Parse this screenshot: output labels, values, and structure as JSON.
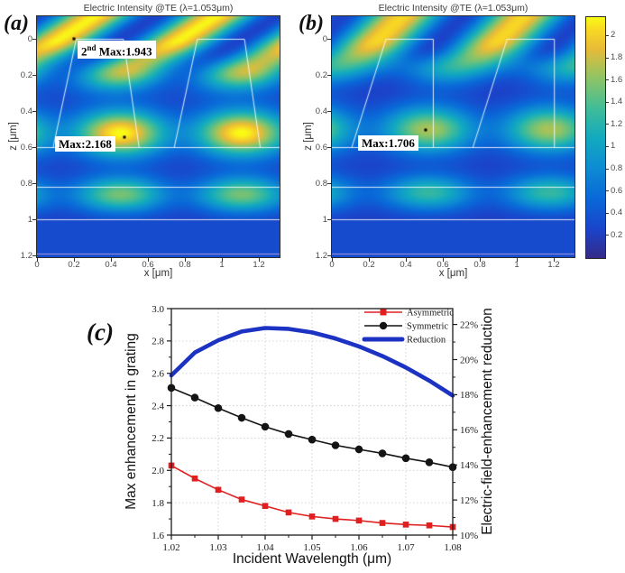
{
  "colors": {
    "parula": [
      [
        0,
        53,
        42,
        135
      ],
      [
        0.12,
        26,
        68,
        203
      ],
      [
        0.25,
        9,
        105,
        216
      ],
      [
        0.38,
        14,
        141,
        210
      ],
      [
        0.5,
        18,
        170,
        191
      ],
      [
        0.62,
        64,
        188,
        152
      ],
      [
        0.75,
        144,
        196,
        100
      ],
      [
        0.87,
        233,
        187,
        55
      ],
      [
        0.95,
        248,
        217,
        35
      ],
      [
        1,
        249,
        251,
        20
      ]
    ],
    "series_red": "#e02020",
    "series_black": "#141414",
    "series_blue": "#1c32c3",
    "grid": "#c9c9c9",
    "axis": "#1a1a1a",
    "outline_white": "rgba(235,255,255,0.9)",
    "layer_line_white": "rgba(255,255,255,0.85)",
    "substrate_line_lavender": "rgba(185,163,224,0.9)"
  },
  "panels": {
    "a": {
      "label": "(a)",
      "title": "Electric Intensity @TE (λ=1.053μm)",
      "xlabel": "x [μm]",
      "ylabel": "z [μm]",
      "x_ticks": [
        "0",
        "0.2",
        "0.4",
        "0.6",
        "0.8",
        "1",
        "1.2"
      ],
      "z_ticks": [
        "0",
        "0.2",
        "0.4",
        "0.6",
        "0.8",
        "1",
        "1.2"
      ],
      "annotations": {
        "second_max": {
          "prefix": "2",
          "sup": "nd",
          "text": " Max:1.943",
          "value": 1.943,
          "x_um": 0.2,
          "z_um": 0.0
        },
        "max": {
          "text": "Max:2.168",
          "value": 2.168,
          "x_um": 0.473,
          "z_um": 0.545
        }
      },
      "field": {
        "vmax": 2.17,
        "period": 0.655,
        "col": 0.45,
        "vamp": 2.0,
        "rows": [
          [
            0.17,
            0.75,
            0.11
          ],
          [
            0.52,
            1.0,
            0.13
          ],
          [
            0.86,
            0.68,
            0.1
          ]
        ],
        "stripe": [
          1.9,
          1.5,
          0.12
        ],
        "teeth": [
          [
            [
              0.085,
              0.6
            ],
            [
              0.21,
              0
            ],
            [
              0.465,
              0
            ],
            [
              0.55,
              0.6
            ]
          ],
          [
            [
              0.74,
              0.6
            ],
            [
              0.865,
              0
            ],
            [
              1.12,
              0
            ],
            [
              1.205,
              0.6
            ]
          ]
        ],
        "lines_z": [
          0.6,
          0.82,
          1.0
        ],
        "substrate_top": 1.0,
        "substrate_line_z": 1.19
      }
    },
    "b": {
      "label": "(b)",
      "title": "Electric Intensity @TE (λ=1.053μm)",
      "xlabel": "x [μm]",
      "ylabel": "z [μm]",
      "x_ticks": [
        "0",
        "0.2",
        "0.4",
        "0.6",
        "0.8",
        "1",
        "1.2"
      ],
      "z_ticks": [
        "0",
        "0.2",
        "0.4",
        "0.6",
        "0.8",
        "1",
        "1.2"
      ],
      "annotations": {
        "max": {
          "text": "Max:1.706",
          "value": 1.706,
          "x_um": 0.507,
          "z_um": 0.505
        }
      },
      "field": {
        "vmax": 2.17,
        "period": 0.655,
        "col": 0.52,
        "vamp": 1.53,
        "rows": [
          [
            0.12,
            0.72,
            0.1
          ],
          [
            0.5,
            1.0,
            0.13
          ],
          [
            0.85,
            0.72,
            0.1
          ]
        ],
        "stripe": [
          1.8,
          1.0,
          0.2525
        ],
        "teeth": [
          [
            [
              0.105,
              0.6
            ],
            [
              0.29,
              0
            ],
            [
              0.546,
              0
            ],
            [
              0.546,
              0.6
            ]
          ],
          [
            [
              0.76,
              0.6
            ],
            [
              0.945,
              0
            ],
            [
              1.201,
              0
            ],
            [
              1.201,
              0.6
            ]
          ]
        ],
        "lines_z": [
          0.6,
          0.82,
          1.0
        ],
        "substrate_top": 1.0,
        "substrate_line_z": 1.19
      }
    },
    "colorbar": {
      "vmin": 0,
      "vmax": 2.17,
      "tick_labels": [
        "0.2",
        "0.4",
        "0.6",
        "0.8",
        "1",
        "1.2",
        "1.4",
        "1.6",
        "1.8",
        "2"
      ]
    },
    "c": {
      "label": "(c)",
      "xlabel": "Incident Wavelength (μm)",
      "ylabel_left": "Max enhancement in grating",
      "ylabel_right": "Electric-field-enhancement reduction",
      "x_tick_labels": [
        "1.02",
        "1.03",
        "1.04",
        "1.05",
        "1.06",
        "1.07",
        "1.08"
      ],
      "left_tick_labels": [
        "1.6",
        "1.8",
        "2.0",
        "2.2",
        "2.4",
        "2.6",
        "2.8",
        "3.0"
      ],
      "right_tick_labels": [
        "10%",
        "12%",
        "14%",
        "16%",
        "18%",
        "20%",
        "22%"
      ],
      "legend": [
        {
          "label": "Asymmetric",
          "marker": "square",
          "color_key": "series_red"
        },
        {
          "label": "Symmetric",
          "marker": "circle",
          "color_key": "series_black"
        },
        {
          "label": "Reduction",
          "marker": "line",
          "color_key": "series_blue"
        }
      ]
    }
  },
  "chart_data": [
    {
      "type": "heatmap",
      "panel": "a",
      "title": "Electric Intensity @TE (λ=1.053μm)",
      "xlabel": "x [μm]",
      "ylabel": "z [μm]",
      "x_range_um": [
        0,
        1.31
      ],
      "z_range_um": [
        -0.125,
        1.21
      ],
      "colormap": "parula",
      "colorbar_range": [
        0,
        2.17
      ],
      "max": {
        "value": 2.168,
        "x_um": 0.473,
        "z_um": 0.545
      },
      "second_max": {
        "value": 1.943,
        "x_um": 0.2,
        "z_um": 0.0
      },
      "structure": "symmetric trapezoidal grating teeth, period 0.655 um, height 0.6 um",
      "layer_interfaces_z_um": [
        0.6,
        0.82,
        1.0,
        1.19
      ]
    },
    {
      "type": "heatmap",
      "panel": "b",
      "title": "Electric Intensity @TE (λ=1.053μm)",
      "xlabel": "x [μm]",
      "ylabel": "z [μm]",
      "x_range_um": [
        0,
        1.31
      ],
      "z_range_um": [
        -0.125,
        1.21
      ],
      "colormap": "parula",
      "colorbar_range": [
        0,
        2.17
      ],
      "max": {
        "value": 1.706,
        "x_um": 0.507,
        "z_um": 0.505
      },
      "structure": "asymmetric slanted grating teeth, period 0.655 um, height 0.6 um",
      "layer_interfaces_z_um": [
        0.6,
        0.82,
        1.0,
        1.19
      ]
    },
    {
      "type": "line",
      "panel": "c",
      "title": "",
      "xlabel": "Incident Wavelength (μm)",
      "ylabel_left": "Max enhancement in grating",
      "ylabel_right": "Electric-field-enhancement reduction",
      "xlim": [
        1.02,
        1.08
      ],
      "ylim_left": [
        1.6,
        3.0
      ],
      "ylim_right_percent": [
        10,
        22
      ],
      "grid": true,
      "legend_position": "top-right",
      "x": [
        1.02,
        1.025,
        1.03,
        1.035,
        1.04,
        1.045,
        1.05,
        1.055,
        1.06,
        1.065,
        1.07,
        1.075,
        1.08
      ],
      "series": [
        {
          "name": "Asymmetric",
          "axis": "left",
          "marker": "square",
          "color_key": "series_red",
          "values": [
            2.03,
            1.95,
            1.88,
            1.82,
            1.78,
            1.74,
            1.715,
            1.7,
            1.69,
            1.675,
            1.665,
            1.66,
            1.65
          ]
        },
        {
          "name": "Symmetric",
          "axis": "left",
          "marker": "circle",
          "color_key": "series_black",
          "values": [
            2.51,
            2.45,
            2.385,
            2.325,
            2.27,
            2.225,
            2.19,
            2.155,
            2.13,
            2.105,
            2.075,
            2.05,
            2.02
          ]
        },
        {
          "name": "Reduction",
          "axis": "right",
          "marker": "none",
          "unit": "%",
          "color_key": "series_blue",
          "values": [
            19.1,
            20.4,
            21.1,
            21.6,
            21.8,
            21.75,
            21.55,
            21.2,
            20.75,
            20.2,
            19.55,
            18.8,
            17.95
          ]
        }
      ]
    }
  ]
}
